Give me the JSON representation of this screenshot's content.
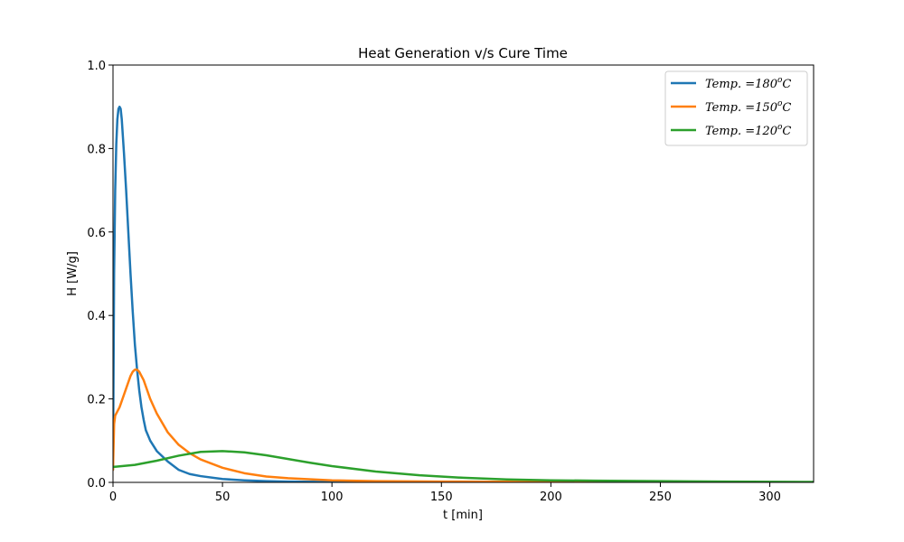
{
  "chart_data": {
    "type": "line",
    "title": "Heat Generation v/s Cure Time",
    "xlabel": "t [min]",
    "ylabel": "H [W/g]",
    "xlim": [
      0,
      320
    ],
    "ylim": [
      0,
      1.0
    ],
    "xticks": [
      0,
      50,
      100,
      150,
      200,
      250,
      300
    ],
    "yticks": [
      0.0,
      0.2,
      0.4,
      0.6,
      0.8,
      1.0
    ],
    "xtick_labels": [
      "0",
      "50",
      "100",
      "150",
      "200",
      "250",
      "300"
    ],
    "ytick_labels": [
      "0.0",
      "0.2",
      "0.4",
      "0.6",
      "0.8",
      "1.0"
    ],
    "grid": false,
    "legend_position": "top-right",
    "series": [
      {
        "name": "Temp. =180°C",
        "legend_prefix": "Temp. =180",
        "legend_sup": "o",
        "legend_suffix": "C",
        "color": "#1f77b4",
        "x": [
          0,
          0.5,
          1,
          1.5,
          2,
          2.5,
          3,
          3.5,
          4,
          5,
          6,
          7,
          8,
          9,
          10,
          11,
          12,
          13,
          14,
          15,
          17,
          20,
          25,
          30,
          35,
          40,
          50,
          60,
          70,
          80,
          100,
          130,
          160,
          200,
          250,
          320
        ],
        "y": [
          0.03,
          0.5,
          0.7,
          0.81,
          0.87,
          0.895,
          0.9,
          0.895,
          0.87,
          0.79,
          0.7,
          0.6,
          0.5,
          0.41,
          0.33,
          0.27,
          0.22,
          0.18,
          0.15,
          0.125,
          0.1,
          0.075,
          0.05,
          0.03,
          0.02,
          0.015,
          0.008,
          0.005,
          0.003,
          0.002,
          0.001,
          0.0005,
          0.0003,
          0.0002,
          0.0001,
          0.0
        ]
      },
      {
        "name": "Temp. =150°C",
        "legend_prefix": "Temp. =150",
        "legend_sup": "o",
        "legend_suffix": "C",
        "color": "#ff7f0e",
        "x": [
          0,
          0.5,
          1,
          2,
          3,
          4,
          5,
          6,
          7,
          8,
          9,
          10,
          11,
          12,
          13,
          14,
          15,
          17,
          20,
          25,
          30,
          35,
          40,
          50,
          60,
          70,
          80,
          100,
          120,
          150,
          200,
          250,
          320
        ],
        "y": [
          0.03,
          0.14,
          0.16,
          0.17,
          0.18,
          0.195,
          0.21,
          0.225,
          0.24,
          0.255,
          0.265,
          0.27,
          0.27,
          0.265,
          0.255,
          0.245,
          0.23,
          0.2,
          0.165,
          0.12,
          0.09,
          0.07,
          0.055,
          0.035,
          0.022,
          0.014,
          0.01,
          0.005,
          0.003,
          0.002,
          0.001,
          0.0005,
          0.0
        ]
      },
      {
        "name": "Temp. =120°C",
        "legend_prefix": "Temp. =120",
        "legend_sup": "o",
        "legend_suffix": "C",
        "color": "#2ca02c",
        "x": [
          0,
          10,
          20,
          30,
          40,
          50,
          60,
          70,
          80,
          90,
          100,
          120,
          140,
          160,
          180,
          200,
          220,
          250,
          280,
          320
        ],
        "y": [
          0.037,
          0.042,
          0.052,
          0.064,
          0.073,
          0.075,
          0.072,
          0.065,
          0.056,
          0.047,
          0.039,
          0.026,
          0.017,
          0.011,
          0.007,
          0.005,
          0.004,
          0.003,
          0.002,
          0.001
        ]
      }
    ]
  }
}
